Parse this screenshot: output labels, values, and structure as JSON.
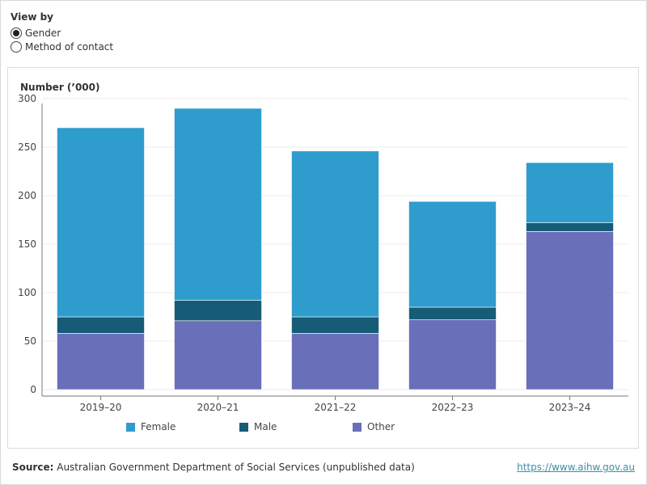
{
  "controls": {
    "title": "View by",
    "options": [
      {
        "label": "Gender",
        "selected": true
      },
      {
        "label": "Method of contact",
        "selected": false
      }
    ]
  },
  "chart_data": {
    "type": "bar",
    "stacked": true,
    "ylabel": "Number ('000)",
    "ylabel_display": "Number (’000)",
    "categories": [
      "2019–20",
      "2020–21",
      "2021–22",
      "2022–23",
      "2023–24"
    ],
    "ylim": [
      0,
      300
    ],
    "yticks": [
      0,
      50,
      100,
      150,
      200,
      250,
      300
    ],
    "grid": true,
    "legend_position": "bottom",
    "series": [
      {
        "name": "Other",
        "color": "#6a6fba",
        "values": [
          58,
          71,
          58,
          72,
          163
        ]
      },
      {
        "name": "Male",
        "color": "#175c77",
        "values": [
          17,
          21,
          17,
          13,
          9
        ]
      },
      {
        "name": "Female",
        "color": "#2f9cce",
        "values": [
          195,
          198,
          171,
          109,
          62
        ]
      }
    ],
    "legend_order": [
      "Female",
      "Male",
      "Other"
    ]
  },
  "footer": {
    "source_label": "Source:",
    "source_text": "Australian Government Department of Social Services (unpublished data)",
    "link": "https://www.aihw.gov.au"
  }
}
